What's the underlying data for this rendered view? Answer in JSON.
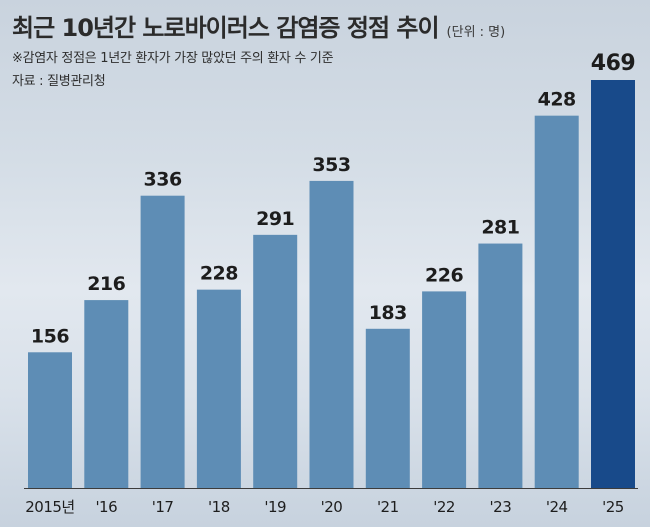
{
  "header": {
    "title": "최근 10년간 노로바이러스 감염증 정점 추이",
    "unit": "(단위 : 명)",
    "note": "※감염자 정점은 1년간 환자가 가장 많았던 주의 환자 수 기준",
    "source": "자료 : 질병관리청"
  },
  "colors": {
    "bar": "#5e8db5",
    "highlight": "#184a8a",
    "text": "#1d1d1d"
  },
  "chart_data": {
    "type": "bar",
    "title": "최근 10년간 노로바이러스 감염증 정점 추이",
    "xlabel": "",
    "ylabel": "",
    "categories": [
      "2015년",
      "'16",
      "'17",
      "'18",
      "'19",
      "'20",
      "'21",
      "'22",
      "'23",
      "'24",
      "'25"
    ],
    "values": [
      156,
      216,
      336,
      228,
      291,
      353,
      183,
      226,
      281,
      428,
      469
    ],
    "highlight_index": 10,
    "ylim": [
      0,
      469
    ],
    "grid": false,
    "legend": "none"
  }
}
